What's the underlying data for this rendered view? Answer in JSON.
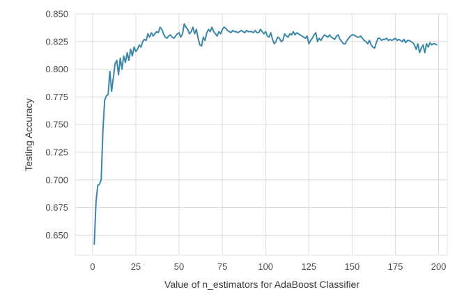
{
  "chart_data": {
    "type": "line",
    "title": "",
    "xlabel": "Value of n_estimators for AdaBoost Classifier",
    "ylabel": "Testing Accuracy",
    "xlim": [
      -10,
      205
    ],
    "ylim": [
      0.632,
      0.85
    ],
    "xticks": [
      0,
      25,
      50,
      75,
      100,
      125,
      150,
      175,
      200
    ],
    "yticks": [
      0.65,
      0.675,
      0.7,
      0.725,
      0.75,
      0.775,
      0.8,
      0.825,
      0.85
    ],
    "grid": true,
    "background": "#eaeaf2",
    "series": [
      {
        "color": "#3b87a8",
        "x": [
          1,
          2,
          3,
          4,
          5,
          6,
          7,
          8,
          9,
          10,
          11,
          12,
          13,
          14,
          15,
          16,
          17,
          18,
          19,
          20,
          21,
          22,
          23,
          24,
          25,
          26,
          27,
          28,
          29,
          30,
          31,
          32,
          33,
          34,
          35,
          36,
          37,
          38,
          39,
          40,
          41,
          42,
          43,
          44,
          45,
          46,
          47,
          48,
          49,
          50,
          51,
          52,
          53,
          54,
          55,
          56,
          57,
          58,
          59,
          60,
          61,
          62,
          63,
          64,
          65,
          66,
          67,
          68,
          69,
          70,
          71,
          72,
          73,
          74,
          75,
          76,
          77,
          78,
          79,
          80,
          81,
          82,
          83,
          84,
          85,
          86,
          87,
          88,
          89,
          90,
          91,
          92,
          93,
          94,
          95,
          96,
          97,
          98,
          99,
          100,
          101,
          102,
          103,
          104,
          105,
          106,
          107,
          108,
          109,
          110,
          111,
          112,
          113,
          114,
          115,
          116,
          117,
          118,
          119,
          120,
          121,
          122,
          123,
          124,
          125,
          126,
          127,
          128,
          129,
          130,
          131,
          132,
          133,
          134,
          135,
          136,
          137,
          138,
          139,
          140,
          141,
          142,
          143,
          144,
          145,
          146,
          147,
          148,
          149,
          150,
          151,
          152,
          153,
          154,
          155,
          156,
          157,
          158,
          159,
          160,
          161,
          162,
          163,
          164,
          165,
          166,
          167,
          168,
          169,
          170,
          171,
          172,
          173,
          174,
          175,
          176,
          177,
          178,
          179,
          180,
          181,
          182,
          183,
          184,
          185,
          186,
          187,
          188,
          189,
          190,
          191,
          192,
          193,
          194,
          195,
          196,
          197,
          198,
          199
        ],
        "y": [
          0.642,
          0.68,
          0.695,
          0.696,
          0.7,
          0.745,
          0.772,
          0.776,
          0.777,
          0.798,
          0.78,
          0.792,
          0.805,
          0.808,
          0.795,
          0.81,
          0.8,
          0.812,
          0.806,
          0.815,
          0.808,
          0.818,
          0.812,
          0.82,
          0.816,
          0.818,
          0.822,
          0.82,
          0.825,
          0.827,
          0.826,
          0.832,
          0.829,
          0.833,
          0.83,
          0.832,
          0.834,
          0.833,
          0.838,
          0.836,
          0.832,
          0.829,
          0.828,
          0.83,
          0.831,
          0.829,
          0.828,
          0.83,
          0.832,
          0.833,
          0.829,
          0.832,
          0.841,
          0.838,
          0.836,
          0.832,
          0.834,
          0.838,
          0.832,
          0.836,
          0.828,
          0.822,
          0.821,
          0.829,
          0.826,
          0.833,
          0.836,
          0.834,
          0.838,
          0.834,
          0.832,
          0.83,
          0.834,
          0.832,
          0.836,
          0.838,
          0.837,
          0.835,
          0.834,
          0.833,
          0.835,
          0.834,
          0.834,
          0.833,
          0.834,
          0.835,
          0.834,
          0.833,
          0.835,
          0.834,
          0.834,
          0.834,
          0.833,
          0.835,
          0.833,
          0.833,
          0.836,
          0.834,
          0.832,
          0.834,
          0.83,
          0.829,
          0.833,
          0.827,
          0.823,
          0.825,
          0.829,
          0.828,
          0.825,
          0.826,
          0.832,
          0.83,
          0.829,
          0.832,
          0.831,
          0.834,
          0.831,
          0.833,
          0.832,
          0.831,
          0.83,
          0.829,
          0.828,
          0.83,
          0.823,
          0.826,
          0.828,
          0.831,
          0.833,
          0.825,
          0.828,
          0.826,
          0.829,
          0.831,
          0.83,
          0.829,
          0.831,
          0.829,
          0.828,
          0.827,
          0.83,
          0.831,
          0.827,
          0.825,
          0.823,
          0.823,
          0.826,
          0.828,
          0.83,
          0.831,
          0.831,
          0.83,
          0.829,
          0.829,
          0.83,
          0.828,
          0.826,
          0.825,
          0.823,
          0.826,
          0.822,
          0.82,
          0.819,
          0.824,
          0.828,
          0.828,
          0.826,
          0.827,
          0.827,
          0.828,
          0.826,
          0.827,
          0.826,
          0.827,
          0.828,
          0.826,
          0.827,
          0.826,
          0.825,
          0.827,
          0.824,
          0.826,
          0.826,
          0.825,
          0.824,
          0.822,
          0.818,
          0.823,
          0.815,
          0.819,
          0.822,
          0.815,
          0.823,
          0.82,
          0.824,
          0.822,
          0.823,
          0.823,
          0.822
        ]
      }
    ]
  }
}
